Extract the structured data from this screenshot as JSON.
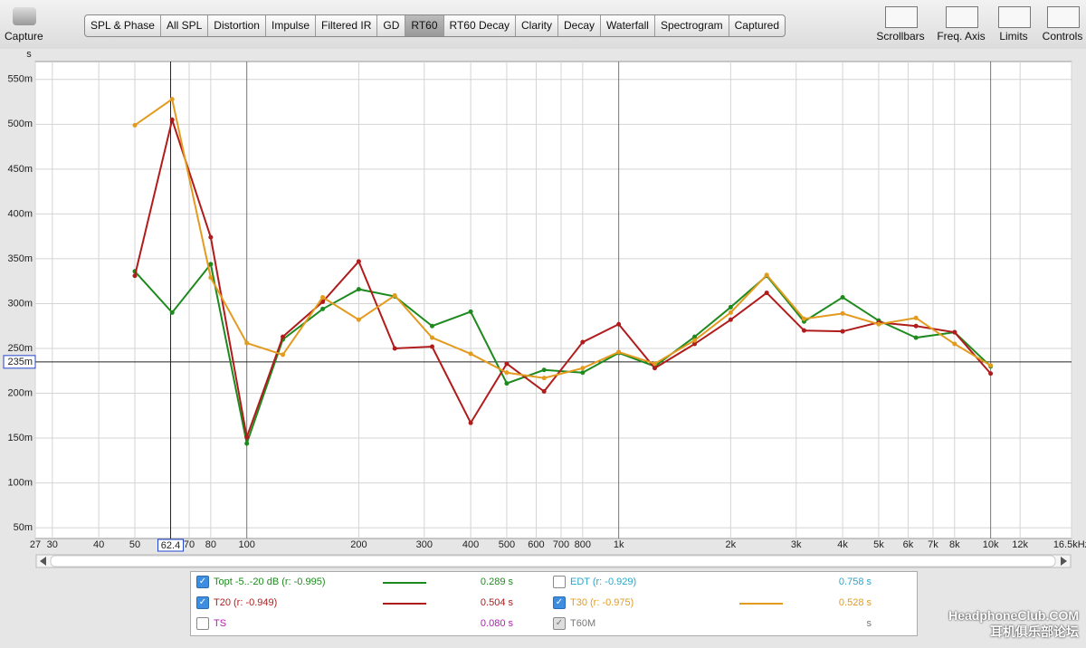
{
  "toolbar": {
    "capture": "Capture",
    "tabs": [
      "SPL & Phase",
      "All SPL",
      "Distortion",
      "Impulse",
      "Filtered IR",
      "GD",
      "RT60",
      "RT60 Decay",
      "Clarity",
      "Decay",
      "Waterfall",
      "Spectrogram",
      "Captured"
    ],
    "selected": 6,
    "tools": [
      "Scrollbars",
      "Freq. Axis",
      "Limits",
      "Controls"
    ]
  },
  "chart_data": {
    "type": "line",
    "y_label": "s",
    "log_x": true,
    "grid": true,
    "x": [
      50,
      63,
      80,
      100,
      125,
      160,
      200,
      250,
      315,
      400,
      500,
      630,
      800,
      1000,
      1250,
      1600,
      2000,
      2500,
      3150,
      4000,
      5000,
      6300,
      8000,
      10000
    ],
    "series": [
      {
        "name": "Topt -5..-20 dB (r: -0.995)",
        "color": "#1e8a1e",
        "readout": "0.289 s",
        "checked": true,
        "values": [
          0.336,
          0.29,
          0.344,
          0.144,
          0.26,
          0.294,
          0.316,
          0.308,
          0.275,
          0.291,
          0.211,
          0.226,
          0.223,
          0.245,
          0.23,
          0.263,
          0.296,
          0.331,
          0.28,
          0.307,
          0.281,
          0.262,
          0.268,
          0.23
        ]
      },
      {
        "name": "T20 (r: -0.949)",
        "color": "#b01c1c",
        "readout": "0.504 s",
        "checked": true,
        "values": [
          0.331,
          0.505,
          0.374,
          0.151,
          0.263,
          0.302,
          0.347,
          0.25,
          0.252,
          0.167,
          0.233,
          0.202,
          0.257,
          0.277,
          0.228,
          0.255,
          0.282,
          0.312,
          0.27,
          0.269,
          0.279,
          0.275,
          0.268,
          0.222
        ]
      },
      {
        "name": "T30 (r: -0.975)",
        "color": "#e39b1f",
        "readout": "0.528 s",
        "checked": true,
        "values": [
          0.499,
          0.528,
          0.329,
          0.256,
          0.243,
          0.307,
          0.282,
          0.309,
          0.262,
          0.244,
          0.223,
          0.217,
          0.228,
          0.246,
          0.233,
          0.259,
          0.29,
          0.332,
          0.283,
          0.289,
          0.277,
          0.284,
          0.255,
          0.231
        ]
      }
    ],
    "other_curves": [
      {
        "name": "EDT (r: -0.929)",
        "color": "#2aa6c8",
        "readout": "0.758 s",
        "checked": false
      },
      {
        "name": "TS",
        "color": "#b020b0",
        "readout": "0.080 s",
        "checked": false
      },
      {
        "name": "T60M",
        "color": "#777777",
        "readout": "s",
        "checked": true
      }
    ],
    "xlim": [
      27,
      16500
    ],
    "xticks": [
      27,
      30,
      40,
      50,
      70,
      80,
      100,
      200,
      300,
      400,
      500,
      600,
      700,
      800,
      {
        "value": 1000,
        "label": "1k"
      },
      {
        "value": 2000,
        "label": "2k"
      },
      {
        "value": 3000,
        "label": "3k"
      },
      {
        "value": 4000,
        "label": "4k"
      },
      {
        "value": 5000,
        "label": "5k"
      },
      {
        "value": 6000,
        "label": "6k"
      },
      {
        "value": 7000,
        "label": "7k"
      },
      {
        "value": 8000,
        "label": "8k"
      },
      {
        "value": 10000,
        "label": "10k"
      },
      {
        "value": 12000,
        "label": "12k"
      },
      {
        "value": 16500,
        "label": "16.5kHz"
      }
    ],
    "ylim": [
      0.038,
      0.57
    ],
    "yticks": [
      {
        "value": 0.05,
        "label": "50m"
      },
      {
        "value": 0.1,
        "label": "100m"
      },
      {
        "value": 0.15,
        "label": "150m"
      },
      {
        "value": 0.2,
        "label": "200m"
      },
      {
        "value": 0.25,
        "label": "250m"
      },
      {
        "value": 0.3,
        "label": "300m"
      },
      {
        "value": 0.35,
        "label": "350m"
      },
      {
        "value": 0.4,
        "label": "400m"
      },
      {
        "value": 0.45,
        "label": "450m"
      },
      {
        "value": 0.5,
        "label": "500m"
      },
      {
        "value": 0.55,
        "label": "550m"
      }
    ],
    "cursor_x": 62.4,
    "cursor_y": {
      "value": 0.235,
      "label": "235m"
    }
  },
  "watermark": [
    "HeadphoneClub.COM",
    "耳机俱乐部论坛"
  ]
}
